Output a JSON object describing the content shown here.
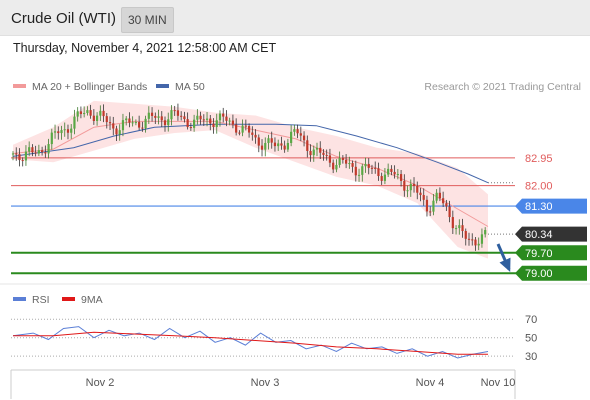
{
  "header": {
    "title": "Crude Oil (WTI)",
    "interval": "30 MIN"
  },
  "datetime": "Thursday, November 4, 2021 12:58:00 AM CET",
  "colors": {
    "ma20": "#f29a9a",
    "ma50": "#4466aa",
    "bands": "#fde3e3",
    "rsi": "#5b7fd6",
    "rsi_ma": "#e01818",
    "resistance": "#e05c5c",
    "current": "#4a86e8",
    "support": "#2a8a1e",
    "last": "#333333"
  },
  "legend": [
    {
      "label": "MA 20 + Bollinger Bands",
      "color": "#f29a9a"
    },
    {
      "label": "MA 50",
      "color": "#4466aa"
    }
  ],
  "credit": "Research © 2021 Trading Central",
  "chart_data": {
    "type": "line",
    "price_range": [
      78.7,
      85.0
    ],
    "levels": [
      {
        "value": 82.95,
        "label": "82.95",
        "kind": "resistance"
      },
      {
        "value": 82.0,
        "label": "82.00",
        "kind": "resistance"
      },
      {
        "value": 81.3,
        "label": "81.30",
        "kind": "current"
      },
      {
        "value": 80.34,
        "label": "80.34",
        "kind": "last"
      },
      {
        "value": 79.7,
        "label": "79.70",
        "kind": "support"
      },
      {
        "value": 79.0,
        "label": "79.00",
        "kind": "support"
      }
    ],
    "x_ticks": [
      "Nov 2",
      "Nov 3",
      "Nov 4",
      "Nov 10"
    ],
    "price_points": [
      [
        0,
        83.1
      ],
      [
        20,
        83.05
      ],
      [
        30,
        83.3
      ],
      [
        45,
        83.8
      ],
      [
        60,
        84.2
      ],
      [
        75,
        84.6
      ],
      [
        85,
        84.35
      ],
      [
        100,
        84.0
      ],
      [
        120,
        84.15
      ],
      [
        140,
        84.3
      ],
      [
        160,
        84.4
      ],
      [
        180,
        84.15
      ],
      [
        200,
        84.3
      ],
      [
        220,
        84.1
      ],
      [
        240,
        83.6
      ],
      [
        260,
        83.3
      ],
      [
        280,
        83.8
      ],
      [
        300,
        83.1
      ],
      [
        320,
        82.8
      ],
      [
        340,
        82.6
      ],
      [
        360,
        82.5
      ],
      [
        380,
        82.3
      ],
      [
        395,
        81.9
      ],
      [
        410,
        81.3
      ],
      [
        420,
        81.6
      ],
      [
        430,
        81.1
      ],
      [
        440,
        80.6
      ],
      [
        450,
        80.0
      ],
      [
        460,
        80.25
      ],
      [
        470,
        80.34
      ]
    ],
    "ma20_points": [
      [
        0,
        83.1
      ],
      [
        40,
        83.25
      ],
      [
        80,
        84.0
      ],
      [
        120,
        84.2
      ],
      [
        160,
        84.2
      ],
      [
        200,
        84.2
      ],
      [
        240,
        83.9
      ],
      [
        280,
        83.6
      ],
      [
        320,
        83.0
      ],
      [
        360,
        82.6
      ],
      [
        400,
        82.0
      ],
      [
        440,
        81.2
      ],
      [
        470,
        80.6
      ]
    ],
    "band_upper_points": [
      [
        0,
        83.4
      ],
      [
        40,
        84.0
      ],
      [
        80,
        84.9
      ],
      [
        120,
        84.8
      ],
      [
        160,
        84.7
      ],
      [
        200,
        84.5
      ],
      [
        240,
        84.4
      ],
      [
        280,
        84.0
      ],
      [
        320,
        83.7
      ],
      [
        360,
        83.3
      ],
      [
        400,
        83.1
      ],
      [
        440,
        82.6
      ],
      [
        470,
        81.7
      ]
    ],
    "band_lower_points": [
      [
        0,
        82.9
      ],
      [
        40,
        82.8
      ],
      [
        80,
        83.2
      ],
      [
        120,
        83.6
      ],
      [
        160,
        83.8
      ],
      [
        200,
        83.9
      ],
      [
        240,
        83.3
      ],
      [
        280,
        82.8
      ],
      [
        320,
        82.3
      ],
      [
        360,
        82.0
      ],
      [
        400,
        81.4
      ],
      [
        440,
        79.9
      ],
      [
        470,
        79.5
      ]
    ],
    "ma50_points": [
      [
        0,
        83.0
      ],
      [
        60,
        83.3
      ],
      [
        100,
        83.7
      ],
      [
        140,
        84.0
      ],
      [
        200,
        84.1
      ],
      [
        260,
        84.1
      ],
      [
        300,
        84.05
      ],
      [
        340,
        83.7
      ],
      [
        380,
        83.3
      ],
      [
        420,
        82.8
      ],
      [
        450,
        82.4
      ],
      [
        470,
        82.1
      ]
    ],
    "forecast_arrow": {
      "from": 80.0,
      "to": 79.0
    },
    "rsi": {
      "legend": [
        {
          "label": "RSI",
          "color": "#5b7fd6"
        },
        {
          "label": "9MA",
          "color": "#e01818"
        }
      ],
      "range": [
        15,
        80
      ],
      "levels": [
        70,
        50,
        30
      ],
      "rsi_points": [
        [
          0,
          52
        ],
        [
          20,
          55
        ],
        [
          35,
          48
        ],
        [
          50,
          60
        ],
        [
          65,
          62
        ],
        [
          80,
          50
        ],
        [
          95,
          58
        ],
        [
          110,
          52
        ],
        [
          125,
          55
        ],
        [
          140,
          48
        ],
        [
          155,
          60
        ],
        [
          170,
          50
        ],
        [
          185,
          57
        ],
        [
          200,
          45
        ],
        [
          215,
          50
        ],
        [
          230,
          42
        ],
        [
          245,
          55
        ],
        [
          260,
          45
        ],
        [
          275,
          47
        ],
        [
          290,
          38
        ],
        [
          305,
          42
        ],
        [
          320,
          35
        ],
        [
          335,
          44
        ],
        [
          350,
          38
        ],
        [
          365,
          40
        ],
        [
          380,
          33
        ],
        [
          395,
          38
        ],
        [
          410,
          30
        ],
        [
          425,
          35
        ],
        [
          440,
          28
        ],
        [
          455,
          32
        ],
        [
          470,
          35
        ]
      ],
      "rsi_ma_points": [
        [
          0,
          52
        ],
        [
          40,
          52
        ],
        [
          80,
          56
        ],
        [
          120,
          54
        ],
        [
          160,
          52
        ],
        [
          200,
          50
        ],
        [
          240,
          47
        ],
        [
          280,
          44
        ],
        [
          320,
          40
        ],
        [
          360,
          38
        ],
        [
          400,
          35
        ],
        [
          440,
          32
        ],
        [
          470,
          32
        ]
      ]
    }
  }
}
